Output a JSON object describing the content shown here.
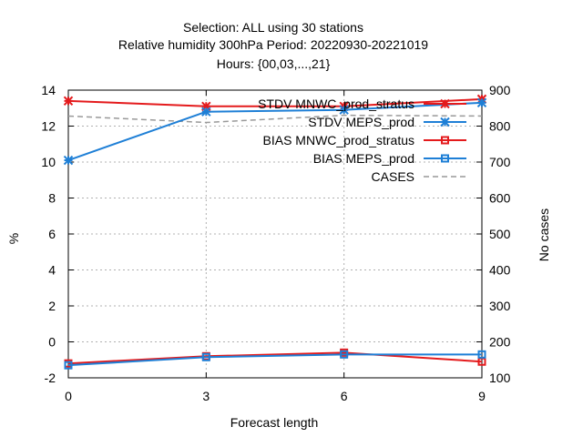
{
  "chart_data": {
    "type": "line",
    "title_lines": [
      "Selection: ALL using    30 stations",
      "Relative humidity 300hPa   Period: 20220930-20221019",
      "Hours: {00,03,...,21}"
    ],
    "xlabel": "Forecast length",
    "ylabel": "%",
    "y2label": "No cases",
    "x": [
      0,
      3,
      6,
      9
    ],
    "xticks": [
      "0",
      "3",
      "6",
      "9"
    ],
    "ylim": [
      -2,
      14
    ],
    "yticks": [
      "-2",
      "0",
      "2",
      "4",
      "6",
      "8",
      "10",
      "12",
      "14"
    ],
    "y2lim": [
      100,
      900
    ],
    "y2ticks": [
      "100",
      "200",
      "300",
      "400",
      "500",
      "600",
      "700",
      "800",
      "900"
    ],
    "grid": true,
    "legend_position": "top-right",
    "series": [
      {
        "name": "STDV MNWC_prod_stratus",
        "axis": "left",
        "color": "#e41a1c",
        "marker": "star",
        "dashed": false,
        "values": [
          13.4,
          13.1,
          13.1,
          13.5
        ]
      },
      {
        "name": "STDV MEPS_prod",
        "axis": "left",
        "color": "#1e7fd6",
        "marker": "star",
        "dashed": false,
        "values": [
          10.1,
          12.8,
          12.9,
          13.3
        ]
      },
      {
        "name": "BIAS MNWC_prod_stratus",
        "axis": "left",
        "color": "#e41a1c",
        "marker": "square",
        "dashed": false,
        "values": [
          -1.2,
          -0.8,
          -0.6,
          -1.1
        ]
      },
      {
        "name": "BIAS MEPS_prod",
        "axis": "left",
        "color": "#1e7fd6",
        "marker": "square",
        "dashed": false,
        "values": [
          -1.3,
          -0.85,
          -0.7,
          -0.7
        ]
      },
      {
        "name": "CASES",
        "axis": "right",
        "color": "#999999",
        "marker": "none",
        "dashed": true,
        "values": [
          828,
          810,
          830,
          828
        ]
      }
    ]
  }
}
